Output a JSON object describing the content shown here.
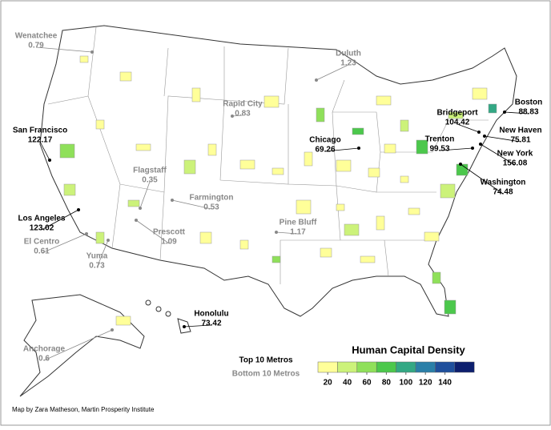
{
  "title": "Human Capital Density",
  "legend": {
    "top": "Top 10 Metros",
    "bottom": "Bottom 10 Metros",
    "colors": [
      "#ffff99",
      "#ccf27a",
      "#8fe05a",
      "#4cc84c",
      "#33a884",
      "#2a7fa8",
      "#1f4f9c",
      "#0d1f6e"
    ],
    "ticks": [
      20,
      40,
      60,
      80,
      100,
      120,
      140
    ]
  },
  "metros": [
    {
      "name": "Wenatchee",
      "value": 0.79,
      "group": "bottom"
    },
    {
      "name": "Duluth",
      "value": 1.23,
      "group": "bottom"
    },
    {
      "name": "Rapid City",
      "value": 0.83,
      "group": "bottom"
    },
    {
      "name": "Chicago",
      "value": 69.26,
      "group": "top"
    },
    {
      "name": "Bridgeport",
      "value": 104.42,
      "group": "top"
    },
    {
      "name": "Boston",
      "value": 88.83,
      "group": "top"
    },
    {
      "name": "New Haven",
      "value": 75.81,
      "group": "top"
    },
    {
      "name": "Trenton",
      "value": 99.53,
      "group": "top"
    },
    {
      "name": "New York",
      "value": 156.08,
      "group": "top"
    },
    {
      "name": "Washington",
      "value": 74.48,
      "group": "top"
    },
    {
      "name": "San Francisco",
      "value": 122.17,
      "group": "top"
    },
    {
      "name": "Flagstaff",
      "value": 0.35,
      "group": "bottom"
    },
    {
      "name": "Farmington",
      "value": 0.53,
      "group": "bottom"
    },
    {
      "name": "Los Angeles",
      "value": 123.02,
      "group": "top"
    },
    {
      "name": "Prescott",
      "value": 1.09,
      "group": "bottom"
    },
    {
      "name": "El Centro",
      "value": 0.61,
      "group": "bottom"
    },
    {
      "name": "Yuma",
      "value": 0.73,
      "group": "bottom"
    },
    {
      "name": "Pine Bluff",
      "value": 1.17,
      "group": "bottom"
    },
    {
      "name": "Honolulu",
      "value": 73.42,
      "group": "top"
    },
    {
      "name": "Anchorage",
      "value": 0.6,
      "group": "bottom"
    }
  ],
  "credit": "Map by Zara Matheson, Martin Prosperity Institute"
}
